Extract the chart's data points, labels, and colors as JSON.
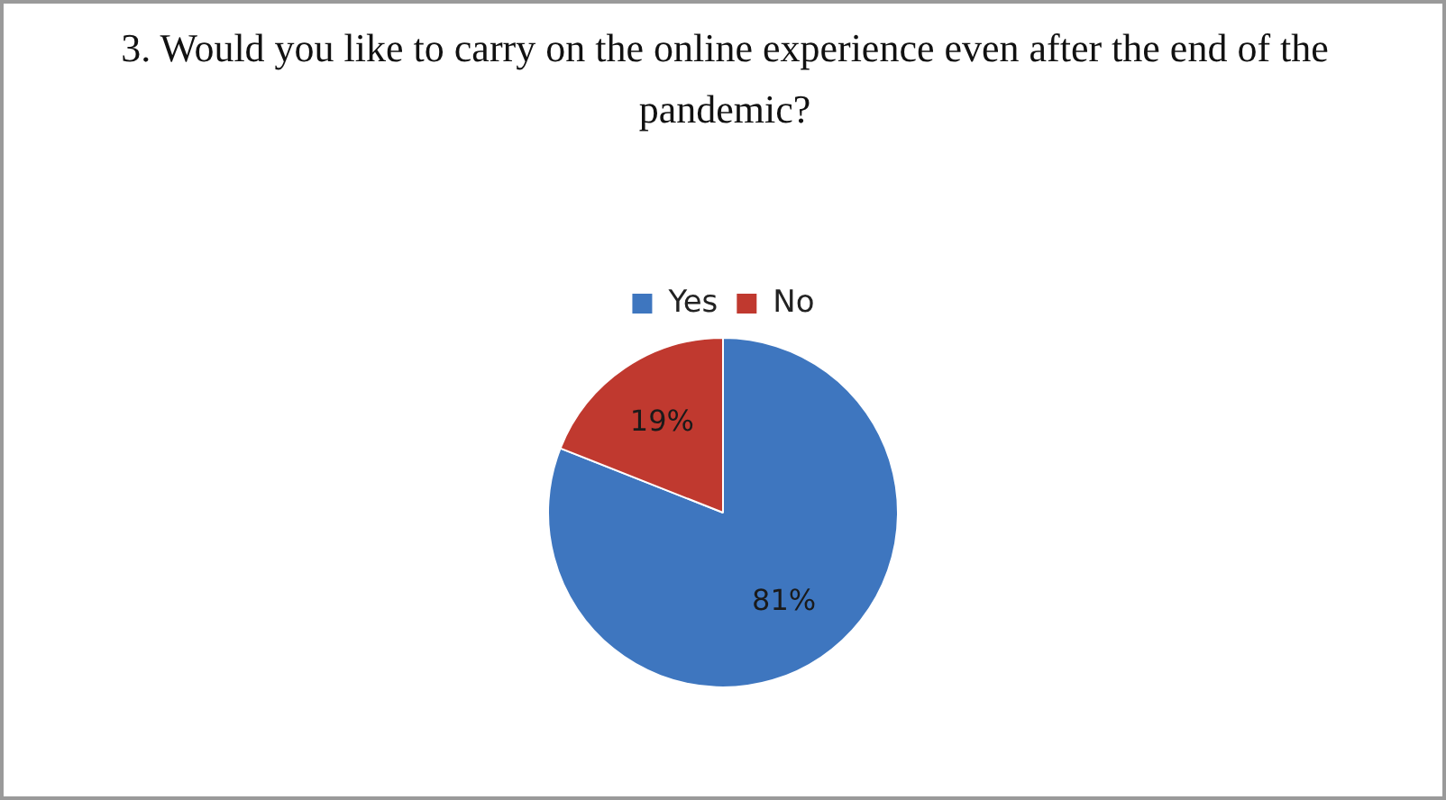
{
  "chart_data": {
    "type": "pie",
    "title": "3. Would you  like to carry on the online experience even after the end of the pandemic?",
    "categories": [
      "Yes",
      "No"
    ],
    "values": [
      81,
      19
    ],
    "colors": [
      "#3e76bf",
      "#c0392f"
    ],
    "value_labels": [
      "81%",
      "19%"
    ],
    "legend": "top"
  }
}
